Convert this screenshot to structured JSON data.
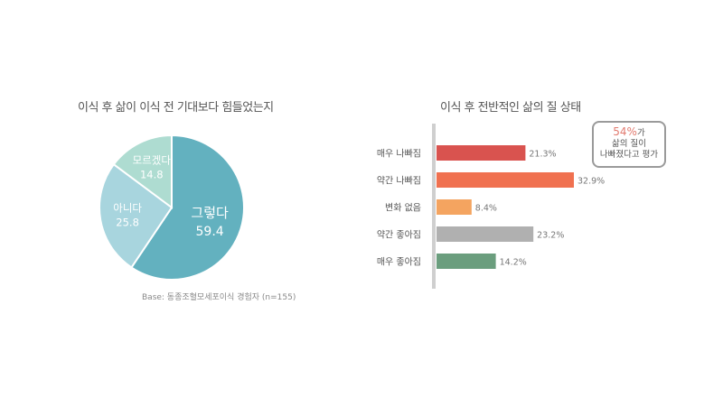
{
  "chart_data": [
    {
      "type": "pie",
      "title": "이식 후 삶이 이식 전 기대보다 힘들었는지",
      "slices": [
        {
          "label": "그렇다",
          "value": 59.4,
          "color": "#63b1bf"
        },
        {
          "label": "아니다",
          "value": 25.8,
          "color": "#a8d5de"
        },
        {
          "label": "모르겠다",
          "value": 14.8,
          "color": "#aedcd1"
        }
      ],
      "note": "Base: 동종조혈모세포이식 경험자 (n=155)"
    },
    {
      "type": "bar",
      "orientation": "horizontal",
      "title": "이식 후 전반적인 삶의 질 상태",
      "categories": [
        "매우 나빠짐",
        "약간 나빠짐",
        "변화 없음",
        "약간 좋아짐",
        "매우 좋아짐"
      ],
      "values": [
        21.3,
        32.9,
        8.4,
        23.2,
        14.2
      ],
      "value_labels": [
        "21.3%",
        "32.9%",
        "8.4%",
        "23.2%",
        "14.2%"
      ],
      "colors": [
        "#d9534f",
        "#f07150",
        "#f4a460",
        "#b0b0b0",
        "#6b9e7e"
      ],
      "callout": {
        "pct": "54%",
        "suffix": "가",
        "line2": "삶의 질이",
        "line3": "나빠졌다고 평가"
      }
    }
  ]
}
